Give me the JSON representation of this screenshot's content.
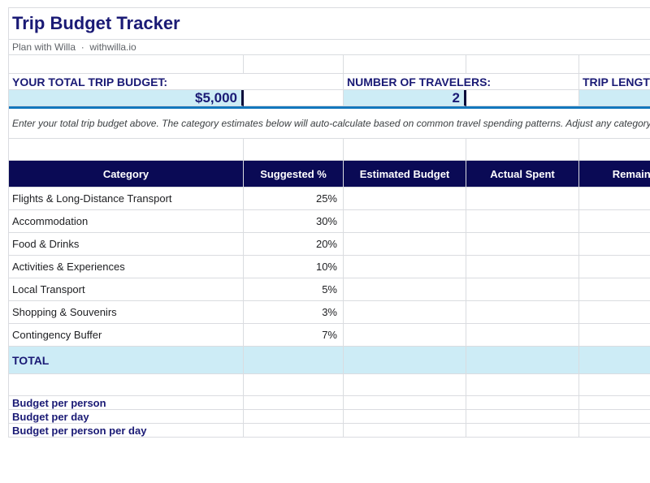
{
  "page": {
    "title": "Trip Budget Tracker",
    "subtitle": "Plan with Willa  ·  withwilla.io"
  },
  "colors": {
    "navy_text": "#1a1a75",
    "header_bg": "#0a0a55",
    "input_highlight": "#cdecf6",
    "accent_line": "#1377bd",
    "grid_line": "#dadce0"
  },
  "inputs": {
    "budget_label": "YOUR TOTAL TRIP BUDGET:",
    "budget_value": "$5,000",
    "travelers_label": "NUMBER OF TRAVELERS:",
    "travelers_value": "2",
    "trip_length_label": "TRIP LENGTH",
    "trip_length_value": ""
  },
  "note": "Enter your total trip budget above. The category estimates below will auto-calculate based on common travel spending patterns. Adjust any category to match",
  "table": {
    "headers": [
      "Category",
      "Suggested %",
      "Estimated Budget",
      "Actual Spent",
      "Remaining"
    ],
    "rows": [
      {
        "category": "Flights & Long-Distance Transport",
        "suggested_pct": "25%",
        "estimated_budget": "",
        "actual_spent": "",
        "remaining": ""
      },
      {
        "category": "Accommodation",
        "suggested_pct": "30%",
        "estimated_budget": "",
        "actual_spent": "",
        "remaining": ""
      },
      {
        "category": "Food & Drinks",
        "suggested_pct": "20%",
        "estimated_budget": "",
        "actual_spent": "",
        "remaining": ""
      },
      {
        "category": "Activities & Experiences",
        "suggested_pct": "10%",
        "estimated_budget": "",
        "actual_spent": "",
        "remaining": ""
      },
      {
        "category": "Local Transport",
        "suggested_pct": "5%",
        "estimated_budget": "",
        "actual_spent": "",
        "remaining": ""
      },
      {
        "category": "Shopping & Souvenirs",
        "suggested_pct": "3%",
        "estimated_budget": "",
        "actual_spent": "",
        "remaining": ""
      },
      {
        "category": "Contingency Buffer",
        "suggested_pct": "7%",
        "estimated_budget": "",
        "actual_spent": "",
        "remaining": ""
      }
    ],
    "total_label": "TOTAL"
  },
  "metrics": [
    {
      "label": "Budget per person",
      "value": ""
    },
    {
      "label": "Budget per day",
      "value": ""
    },
    {
      "label": "Budget per person per day",
      "value": ""
    }
  ]
}
